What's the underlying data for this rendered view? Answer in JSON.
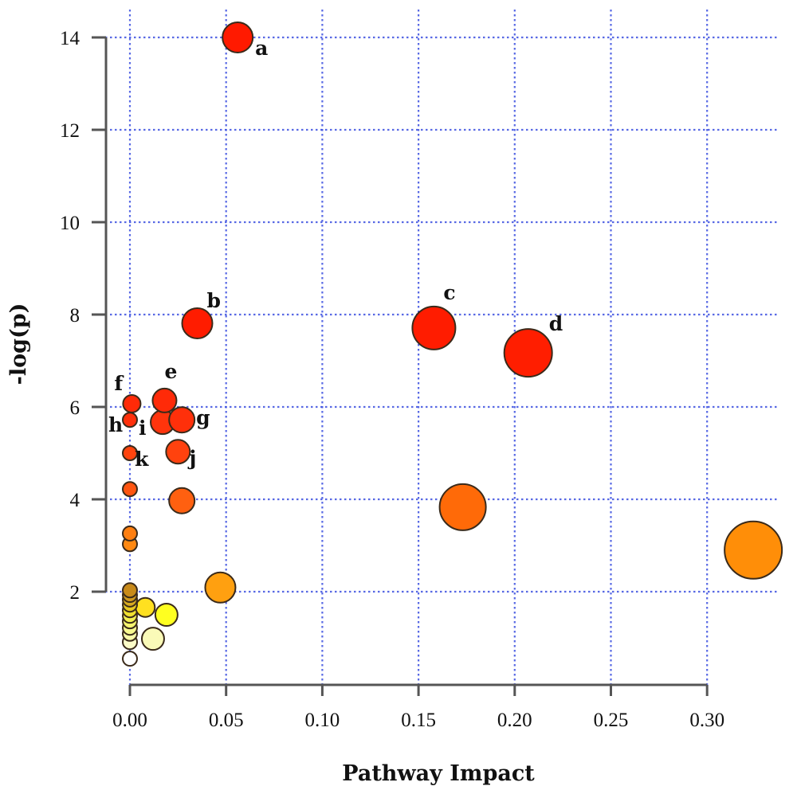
{
  "chart_data": {
    "type": "scatter",
    "title": "",
    "xlabel": "Pathway Impact",
    "ylabel": "-log(p)",
    "xlim": [
      0.0,
      0.3
    ],
    "ylim": [
      0,
      14
    ],
    "x_ticks": [
      "0.00",
      "0.05",
      "0.10",
      "0.15",
      "0.20",
      "0.25",
      "0.30"
    ],
    "x_tick_values": [
      0.0,
      0.05,
      0.1,
      0.15,
      0.2,
      0.25,
      0.3
    ],
    "y_ticks": [
      "2",
      "4",
      "6",
      "8",
      "10",
      "12",
      "14"
    ],
    "y_tick_values": [
      2,
      4,
      6,
      8,
      10,
      12,
      14
    ],
    "grid": true,
    "grid_color": "#3b4fe0",
    "size_encodes": "pathway impact",
    "color_encodes": "-log(p) (white → yellow → orange → red)",
    "points": [
      {
        "label": "a",
        "x": 0.056,
        "y": 14.0,
        "size": 19,
        "color": "#ff1a00"
      },
      {
        "label": "b",
        "x": 0.035,
        "y": 7.81,
        "size": 19,
        "color": "#ff1c00"
      },
      {
        "label": "c",
        "x": 0.158,
        "y": 7.71,
        "size": 27,
        "color": "#ff1c00"
      },
      {
        "label": "d",
        "x": 0.207,
        "y": 7.17,
        "size": 30,
        "color": "#ff1e00"
      },
      {
        "label": "e",
        "x": 0.018,
        "y": 6.14,
        "size": 15,
        "color": "#ff2a08"
      },
      {
        "label": "f",
        "x": 0.001,
        "y": 6.07,
        "size": 11,
        "color": "#ff2a08"
      },
      {
        "label": "g",
        "x": 0.027,
        "y": 5.72,
        "size": 16,
        "color": "#ff300a"
      },
      {
        "label": "h",
        "x": 0.0,
        "y": 5.72,
        "size": 9,
        "color": "#ff300a"
      },
      {
        "label": "i",
        "x": 0.017,
        "y": 5.67,
        "size": 15,
        "color": "#ff340c"
      },
      {
        "label": "j",
        "x": 0.025,
        "y": 5.03,
        "size": 15,
        "color": "#ff420e"
      },
      {
        "label": "k",
        "x": 0.0,
        "y": 5.0,
        "size": 9,
        "color": "#ff440e"
      },
      {
        "label": "",
        "x": 0.0,
        "y": 4.22,
        "size": 9,
        "color": "#ff5510"
      },
      {
        "label": "",
        "x": 0.027,
        "y": 3.97,
        "size": 16,
        "color": "#ff6010"
      },
      {
        "label": "",
        "x": 0.173,
        "y": 3.83,
        "size": 29,
        "color": "#ff6a08"
      },
      {
        "label": "",
        "x": 0.0,
        "y": 3.26,
        "size": 9,
        "color": "#ff7f10"
      },
      {
        "label": "",
        "x": 0.0,
        "y": 3.03,
        "size": 9,
        "color": "#ff8810"
      },
      {
        "label": "",
        "x": 0.324,
        "y": 2.9,
        "size": 36,
        "color": "#ff8e08"
      },
      {
        "label": "",
        "x": 0.047,
        "y": 2.09,
        "size": 19,
        "color": "#ffa010"
      },
      {
        "label": "",
        "x": 0.0,
        "y": 2.03,
        "size": 9,
        "color": "#c88a1a"
      },
      {
        "label": "",
        "x": 0.0,
        "y": 1.93,
        "size": 9,
        "color": "#d09a20"
      },
      {
        "label": "",
        "x": 0.0,
        "y": 1.83,
        "size": 9,
        "color": "#d8aa20"
      },
      {
        "label": "",
        "x": 0.0,
        "y": 1.72,
        "size": 9,
        "color": "#e8c820"
      },
      {
        "label": "",
        "x": 0.008,
        "y": 1.66,
        "size": 12,
        "color": "#ffe020"
      },
      {
        "label": "",
        "x": 0.0,
        "y": 1.6,
        "size": 9,
        "color": "#f0e030"
      },
      {
        "label": "",
        "x": 0.019,
        "y": 1.5,
        "size": 14,
        "color": "#ffff20"
      },
      {
        "label": "",
        "x": 0.0,
        "y": 1.48,
        "size": 9,
        "color": "#f4f050"
      },
      {
        "label": "",
        "x": 0.0,
        "y": 1.36,
        "size": 9,
        "color": "#f6f470"
      },
      {
        "label": "",
        "x": 0.0,
        "y": 1.22,
        "size": 9,
        "color": "#f8f890"
      },
      {
        "label": "",
        "x": 0.0,
        "y": 1.09,
        "size": 9,
        "color": "#fafaa8"
      },
      {
        "label": "",
        "x": 0.012,
        "y": 0.98,
        "size": 14,
        "color": "#fafab8"
      },
      {
        "label": "",
        "x": 0.0,
        "y": 0.91,
        "size": 9,
        "color": "#fcfcc8"
      },
      {
        "label": "",
        "x": 0.0,
        "y": 0.55,
        "size": 9,
        "color": "#ffffff"
      }
    ]
  }
}
